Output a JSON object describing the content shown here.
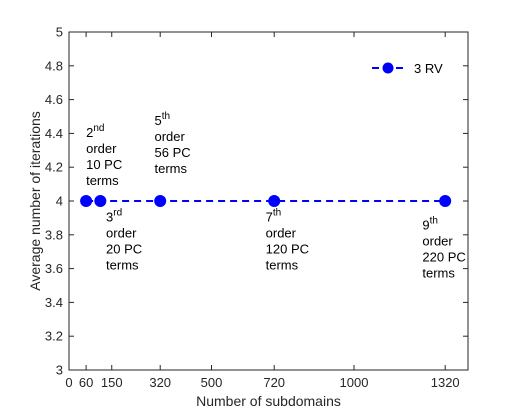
{
  "chart_data": {
    "type": "line",
    "xlabel": "Number of subdomains",
    "ylabel": "Average number of iterations",
    "xlim": [
      0,
      1400
    ],
    "ylim": [
      3,
      5
    ],
    "xticks": [
      0,
      60,
      150,
      320,
      500,
      720,
      1000,
      1320
    ],
    "yticks": [
      3,
      3.2,
      3.4,
      3.6,
      3.8,
      4,
      4.2,
      4.4,
      4.6,
      4.8,
      5
    ],
    "grid": false,
    "legend_position": "top-right",
    "colors": {
      "series": "#0000ff",
      "axis": "#262626"
    },
    "series": [
      {
        "name": "3 RV",
        "line_style": "dashed",
        "marker": "circle",
        "x": [
          60,
          110,
          320,
          720,
          1320
        ],
        "y": [
          4,
          4,
          4,
          4,
          4
        ]
      }
    ],
    "annotations": [
      {
        "id": "a1",
        "x": 60,
        "y": 4.38,
        "lines": [
          [
            "2",
            "nd"
          ],
          [
            "order"
          ],
          [
            "10 PC"
          ],
          [
            "terms"
          ]
        ]
      },
      {
        "id": "a2",
        "x": 130,
        "y": 3.88,
        "lines": [
          [
            "3",
            "rd"
          ],
          [
            "order"
          ],
          [
            "20 PC"
          ],
          [
            "terms"
          ]
        ]
      },
      {
        "id": "a3",
        "x": 300,
        "y": 4.45,
        "lines": [
          [
            "5",
            "th"
          ],
          [
            "order"
          ],
          [
            "56 PC"
          ],
          [
            "terms"
          ]
        ]
      },
      {
        "id": "a4",
        "x": 690,
        "y": 3.88,
        "lines": [
          [
            "7",
            "th"
          ],
          [
            "order"
          ],
          [
            "120 PC"
          ],
          [
            "terms"
          ]
        ]
      },
      {
        "id": "a5",
        "x": 1240,
        "y": 3.83,
        "lines": [
          [
            "9",
            "th"
          ],
          [
            "order"
          ],
          [
            "220 PC"
          ],
          [
            "terms"
          ]
        ]
      }
    ]
  }
}
